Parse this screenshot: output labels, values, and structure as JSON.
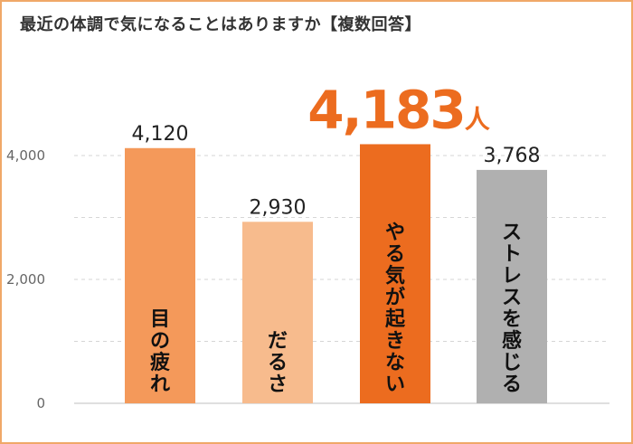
{
  "chart_data": {
    "type": "bar",
    "title": "最近の体調で気になることはありますか【複数回答】",
    "categories": [
      "目の疲れ",
      "だるさ",
      "やる気が起きない",
      "ストレスを感じる"
    ],
    "values": [
      4120,
      2930,
      4183,
      3768
    ],
    "value_labels": [
      "4,120",
      "2,930",
      "4,183",
      "3,768"
    ],
    "highlight_unit": "人",
    "bar_colors": [
      "#f4995a",
      "#f7bb8d",
      "#ec6c1f",
      "#b0b0b0"
    ],
    "ylim": [
      0,
      4000
    ],
    "yticks": [
      0,
      2000,
      4000
    ],
    "ytick_labels": [
      "0",
      "2,000",
      "4,000"
    ],
    "grid": true,
    "xlabel": "",
    "ylabel": ""
  },
  "colors": {
    "frame": "#f0a868",
    "accent": "#ec6c1f"
  }
}
